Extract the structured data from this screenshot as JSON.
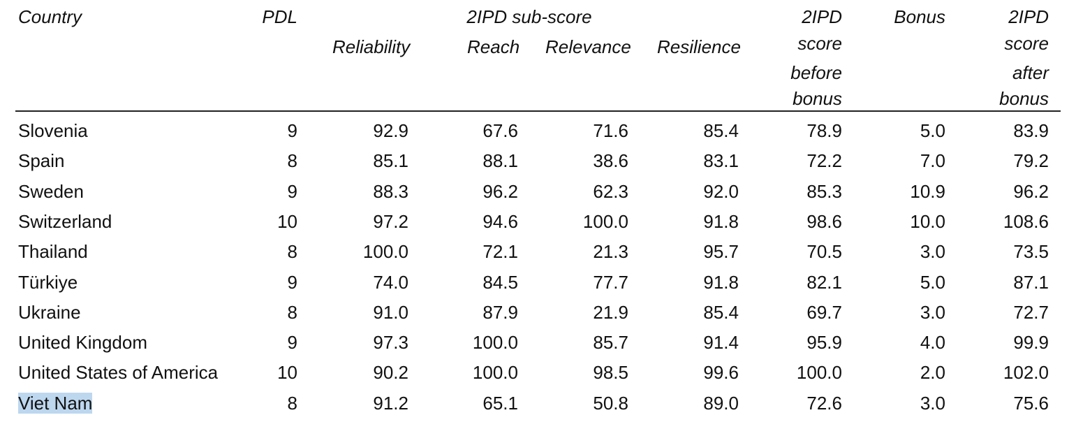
{
  "header": {
    "country": "Country",
    "pdl": "PDL",
    "subscore_group": "2IPD sub-score",
    "reliability": "Reliability",
    "reach": "Reach",
    "relevance": "Relevance",
    "resilience": "Resilience",
    "before_bonus": [
      "2IPD",
      "score",
      "before",
      "bonus"
    ],
    "bonus": "Bonus",
    "after_bonus": [
      "2IPD",
      "score",
      "after",
      "bonus"
    ]
  },
  "rows": [
    {
      "country": "Slovenia",
      "pdl": "9",
      "reliability": "92.9",
      "reach": "67.6",
      "relevance": "71.6",
      "resilience": "85.4",
      "before": "78.9",
      "bonus": "5.0",
      "after": "83.9"
    },
    {
      "country": "Spain",
      "pdl": "8",
      "reliability": "85.1",
      "reach": "88.1",
      "relevance": "38.6",
      "resilience": "83.1",
      "before": "72.2",
      "bonus": "7.0",
      "after": "79.2"
    },
    {
      "country": "Sweden",
      "pdl": "9",
      "reliability": "88.3",
      "reach": "96.2",
      "relevance": "62.3",
      "resilience": "92.0",
      "before": "85.3",
      "bonus": "10.9",
      "after": "96.2"
    },
    {
      "country": "Switzerland",
      "pdl": "10",
      "reliability": "97.2",
      "reach": "94.6",
      "relevance": "100.0",
      "resilience": "91.8",
      "before": "98.6",
      "bonus": "10.0",
      "after": "108.6"
    },
    {
      "country": "Thailand",
      "pdl": "8",
      "reliability": "100.0",
      "reach": "72.1",
      "relevance": "21.3",
      "resilience": "95.7",
      "before": "70.5",
      "bonus": "3.0",
      "after": "73.5"
    },
    {
      "country": "Türkiye",
      "pdl": "9",
      "reliability": "74.0",
      "reach": "84.5",
      "relevance": "77.7",
      "resilience": "91.8",
      "before": "82.1",
      "bonus": "5.0",
      "after": "87.1"
    },
    {
      "country": "Ukraine",
      "pdl": "8",
      "reliability": "91.0",
      "reach": "87.9",
      "relevance": "21.9",
      "resilience": "85.4",
      "before": "69.7",
      "bonus": "3.0",
      "after": "72.7"
    },
    {
      "country": "United Kingdom",
      "pdl": "9",
      "reliability": "97.3",
      "reach": "100.0",
      "relevance": "85.7",
      "resilience": "91.4",
      "before": "95.9",
      "bonus": "4.0",
      "after": "99.9"
    },
    {
      "country": "United States of America",
      "pdl": "10",
      "reliability": "90.2",
      "reach": "100.0",
      "relevance": "98.5",
      "resilience": "99.6",
      "before": "100.0",
      "bonus": "2.0",
      "after": "102.0"
    },
    {
      "country": "Viet Nam",
      "pdl": "8",
      "reliability": "91.2",
      "reach": "65.1",
      "relevance": "50.8",
      "resilience": "89.0",
      "before": "72.6",
      "bonus": "3.0",
      "after": "75.6",
      "selected": true
    }
  ],
  "colors": {
    "text": "#111111",
    "selection_highlight": "#bdd7ee",
    "rule": "#222222"
  }
}
